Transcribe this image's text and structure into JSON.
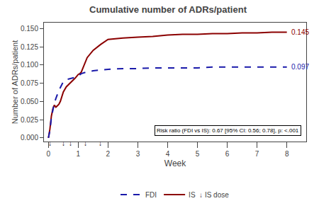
{
  "chart_data": {
    "type": "line",
    "title": "Cumulative number of ADRs/patient",
    "x_label": "Week",
    "y_label": "Number of ADRs/patient",
    "xlim": [
      -0.15,
      8.65
    ],
    "ylim": [
      -0.005,
      0.158
    ],
    "xticks": [
      0,
      1,
      2,
      3,
      4,
      5,
      6,
      7,
      8
    ],
    "yticks": [
      {
        "value": 0.0,
        "label": "0.000"
      },
      {
        "value": 0.025,
        "label": "0.025"
      },
      {
        "value": 0.05,
        "label": "0.050"
      },
      {
        "value": 0.075,
        "label": "0.075"
      },
      {
        "value": 0.1,
        "label": "0.100"
      },
      {
        "value": 0.125,
        "label": "0.125"
      },
      {
        "value": 0.15,
        "label": "0.150"
      }
    ],
    "grid": false,
    "legend": "bottom",
    "series": [
      {
        "name": "FDI",
        "color": "#1a1aaa",
        "line_style": "dashed",
        "end_label": "0.097",
        "x": [
          0,
          0.05,
          0.1,
          0.15,
          0.2,
          0.25,
          0.3,
          0.35,
          0.4,
          0.45,
          0.5,
          0.6,
          0.7,
          0.8,
          0.9,
          1.0,
          1.1,
          1.25,
          1.5,
          1.75,
          2.0,
          2.5,
          3.0,
          3.5,
          4.0,
          4.5,
          5.0,
          5.5,
          6.0,
          6.5,
          7.0,
          7.5,
          8.0
        ],
        "values": [
          0,
          0.01,
          0.028,
          0.04,
          0.048,
          0.054,
          0.06,
          0.065,
          0.069,
          0.073,
          0.077,
          0.08,
          0.081,
          0.082,
          0.083,
          0.085,
          0.088,
          0.09,
          0.092,
          0.093,
          0.094,
          0.095,
          0.095,
          0.096,
          0.096,
          0.096,
          0.096,
          0.097,
          0.097,
          0.097,
          0.097,
          0.097,
          0.097
        ]
      },
      {
        "name": "IS  ↓ IS dose",
        "color": "#8B0000",
        "line_style": "solid",
        "end_label": "0.145",
        "x": [
          0,
          0.05,
          0.1,
          0.15,
          0.2,
          0.25,
          0.3,
          0.35,
          0.4,
          0.45,
          0.5,
          0.6,
          0.7,
          0.8,
          0.9,
          1.0,
          1.05,
          1.1,
          1.2,
          1.3,
          1.5,
          1.75,
          2.0,
          2.25,
          2.5,
          3.0,
          3.5,
          4.0,
          4.5,
          5.0,
          5.5,
          6.0,
          6.5,
          7.0,
          7.5,
          8.0
        ],
        "values": [
          0,
          0.012,
          0.03,
          0.04,
          0.045,
          0.042,
          0.044,
          0.046,
          0.05,
          0.056,
          0.063,
          0.07,
          0.074,
          0.078,
          0.082,
          0.087,
          0.088,
          0.09,
          0.1,
          0.11,
          0.12,
          0.128,
          0.135,
          0.136,
          0.137,
          0.138,
          0.139,
          0.141,
          0.142,
          0.142,
          0.143,
          0.143,
          0.144,
          0.144,
          0.145,
          0.145
        ]
      }
    ],
    "arrows": {
      "text": "↓",
      "x": [
        0.05,
        0.5,
        0.75,
        1.25,
        1.75
      ]
    },
    "annotations": [
      "Risk ratio (FDI vs IS): 0.67 [95% CI: 0.56; 0.78], p: <.001"
    ]
  }
}
